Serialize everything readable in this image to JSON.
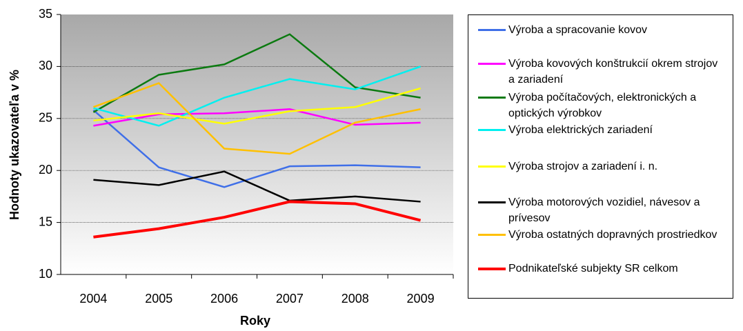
{
  "chart_data": {
    "type": "line",
    "x_label": "Roky",
    "y_label": "Hodnoty ukazovateľa v %",
    "categories": [
      "2004",
      "2005",
      "2006",
      "2007",
      "2008",
      "2009"
    ],
    "ylim": [
      10,
      35
    ],
    "yticks": [
      10,
      15,
      20,
      25,
      30,
      35
    ],
    "grid": true,
    "legend": "right",
    "series": [
      {
        "name": "Výroba a spracovanie kovov",
        "color": "#3f6fe8",
        "values": [
          25.8,
          20.3,
          18.4,
          20.4,
          20.5,
          20.3
        ]
      },
      {
        "name": "Výroba kovových konštrukcií okrem strojov a zariadení",
        "color": "#ff00ff",
        "values": [
          24.3,
          25.4,
          25.5,
          25.9,
          24.4,
          24.6
        ]
      },
      {
        "name": "Výroba počítačových, elektronických a optických výrobkov",
        "color": "#0b7a10",
        "values": [
          25.6,
          29.2,
          30.2,
          33.1,
          28.0,
          27.0
        ]
      },
      {
        "name": "Výroba elektrických zariadení",
        "color": "#00f0f0",
        "values": [
          26.0,
          24.3,
          27.0,
          28.8,
          27.8,
          30.0
        ]
      },
      {
        "name": "Výroba strojov a zariadení i. n.",
        "color": "#ffff00",
        "values": [
          24.8,
          25.5,
          24.5,
          25.7,
          26.1,
          27.9
        ]
      },
      {
        "name": "Výroba motorových vozidiel, návesov a prívesov",
        "color": "#000000",
        "values": [
          19.1,
          18.6,
          19.9,
          17.1,
          17.5,
          17.0
        ]
      },
      {
        "name": "Výroba ostatných dopravných prostriedkov",
        "color": "#ffc000",
        "values": [
          26.1,
          28.4,
          22.1,
          21.6,
          24.6,
          25.9
        ]
      },
      {
        "name": "Podnikateľské subjekty SR celkom",
        "color": "#ff0000",
        "values": [
          13.6,
          14.4,
          15.5,
          17.0,
          16.8,
          15.2
        ],
        "width": 4
      }
    ]
  }
}
